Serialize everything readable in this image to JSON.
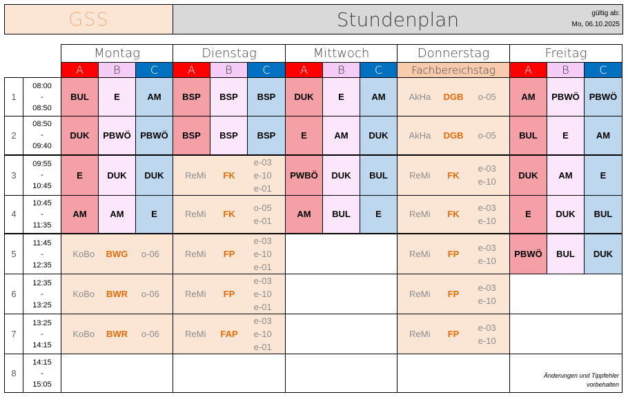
{
  "header": {
    "school": "GSS",
    "title": "Stundenplan",
    "valid_label": "gültig ab:",
    "valid_date": "Mo, 06.10.2025"
  },
  "days": [
    "Montag",
    "Dienstag",
    "Mittwoch",
    "Donnerstag",
    "Freitag"
  ],
  "groups": [
    "A",
    "B",
    "C"
  ],
  "fachbereichstag": "Fachbereichstag",
  "colors": {
    "A": "#ff0000",
    "B": "#f4ccf6",
    "C": "#0070c0",
    "A_cell": "#f4a0a6",
    "B_cell": "#fbe6fb",
    "C_cell": "#bdd7ee",
    "practical": "#fbe5d5",
    "accent_orange": "#e36c09"
  },
  "periods": [
    {
      "num": "1",
      "start": "08:00",
      "sep": "-",
      "end": "08:50"
    },
    {
      "num": "2",
      "start": "08:50",
      "sep": "-",
      "end": "09:40"
    },
    {
      "num": "3",
      "start": "09:55",
      "sep": "-",
      "end": "10:45"
    },
    {
      "num": "4",
      "start": "10:45",
      "sep": "-",
      "end": "11:35"
    },
    {
      "num": "5",
      "start": "11:45",
      "sep": "-",
      "end": "12:35"
    },
    {
      "num": "6",
      "start": "12:35",
      "sep": "-",
      "end": "13:25"
    },
    {
      "num": "7",
      "start": "13:25",
      "sep": "-",
      "end": "14:15"
    },
    {
      "num": "8",
      "start": "14:15",
      "sep": "-",
      "end": "15:05"
    }
  ],
  "schedule": {
    "p1": {
      "mo": [
        "BUL",
        "E",
        "AM"
      ],
      "di": [
        "BSP",
        "BSP",
        "BSP"
      ],
      "mi": [
        "DUK",
        "E",
        "AM"
      ],
      "do": {
        "teacher": "AkHa",
        "subject": "DGB",
        "rooms": [
          "o-05"
        ]
      },
      "fr": [
        "AM",
        "PBWÖ",
        "PBWÖ"
      ]
    },
    "p2": {
      "mo": [
        "DUK",
        "PBWÖ",
        "PBWÖ"
      ],
      "di": [
        "BSP",
        "BSP",
        "BSP"
      ],
      "mi": [
        "E",
        "AM",
        "DUK"
      ],
      "do": {
        "teacher": "AkHa",
        "subject": "DGB",
        "rooms": [
          "o-05"
        ]
      },
      "fr": [
        "BUL",
        "E",
        "AM"
      ]
    },
    "p3": {
      "mo": [
        "E",
        "DUK",
        "DUK"
      ],
      "di": {
        "teacher": "ReMi",
        "subject": "FK",
        "rooms": [
          "e-03",
          "e-10",
          "e-01"
        ]
      },
      "mi": [
        "PWBÖ",
        "DUK",
        "BUL"
      ],
      "do": {
        "teacher": "ReMi",
        "subject": "FK",
        "rooms": [
          "e-03",
          "e-10"
        ]
      },
      "fr": [
        "DUK",
        "AM",
        "E"
      ]
    },
    "p4": {
      "mo": [
        "AM",
        "AM",
        "E"
      ],
      "di": {
        "teacher": "ReMi",
        "subject": "FK",
        "rooms": [
          "o-05",
          "e-01"
        ]
      },
      "mi": [
        "AM",
        "BUL",
        "E"
      ],
      "do": {
        "teacher": "ReMi",
        "subject": "FK",
        "rooms": [
          "e-03",
          "e-10"
        ]
      },
      "fr": [
        "E",
        "DUK",
        "BUL"
      ]
    },
    "p5": {
      "mo": {
        "teacher": "KoBo",
        "subject": "BWG",
        "rooms": [
          "o-06"
        ]
      },
      "di": {
        "teacher": "ReMi",
        "subject": "FP",
        "rooms": [
          "e-03",
          "e-10",
          "e-01"
        ]
      },
      "do": {
        "teacher": "ReMi",
        "subject": "FP",
        "rooms": [
          "e-03",
          "e-10"
        ]
      },
      "fr": [
        "PBWÖ",
        "BUL",
        "DUK"
      ]
    },
    "p6": {
      "mo": {
        "teacher": "KoBo",
        "subject": "BWR",
        "rooms": [
          "o-06"
        ]
      },
      "di": {
        "teacher": "ReMi",
        "subject": "FP",
        "rooms": [
          "e-03",
          "e-10",
          "e-01"
        ]
      },
      "do": {
        "teacher": "ReMi",
        "subject": "FP",
        "rooms": [
          "e-03",
          "e-10"
        ]
      }
    },
    "p7": {
      "mo": {
        "teacher": "KoBo",
        "subject": "BWR",
        "rooms": [
          "o-06"
        ]
      },
      "di": {
        "teacher": "ReMi",
        "subject": "FAP",
        "rooms": [
          "e-03",
          "e-10",
          "e-01"
        ]
      },
      "do": {
        "teacher": "ReMi",
        "subject": "FP",
        "rooms": [
          "e-03",
          "e-10"
        ]
      }
    }
  },
  "note": {
    "line1": "Änderungen und Tippfehler",
    "line2": "vorbehalten"
  }
}
